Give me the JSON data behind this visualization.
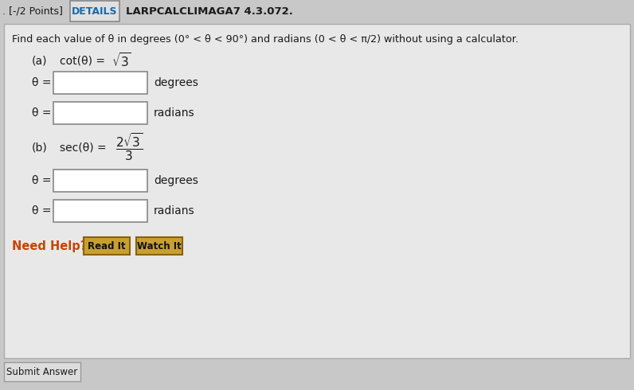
{
  "bg_color": "#c8c8c8",
  "header_bg": "#c8c8c8",
  "content_bg": "#e8e8e8",
  "text_color": "#1a1a1a",
  "title_text": ". [-/2 Points]",
  "details_text": "DETAILS",
  "problem_id": "LARPCALCLIMAGA7 4.3.072.",
  "instruction": "Find each value of θ in degrees (0° < θ < 90°) and radians (0 < θ < π/2) without using a calculator.",
  "part_a_label": "(a)",
  "part_a_left": "cot(θ) = ",
  "part_a_sqrt": "√3",
  "part_b_label": "(b)",
  "part_b_left": "sec(θ) = ",
  "part_b_num": "2√3",
  "part_b_den": "3",
  "theta": "θ =",
  "degrees": "degrees",
  "radians": "radians",
  "need_help": "Need Help?",
  "need_help_color": "#c84400",
  "read_it": "Read It",
  "watch_it": "Watch It",
  "btn_face": "#c8a030",
  "btn_edge": "#8b6010",
  "submit": "Submit Answer",
  "input_face": "#ffffff",
  "input_edge": "#888888",
  "details_face": "#e0e0e0",
  "details_edge": "#888888"
}
